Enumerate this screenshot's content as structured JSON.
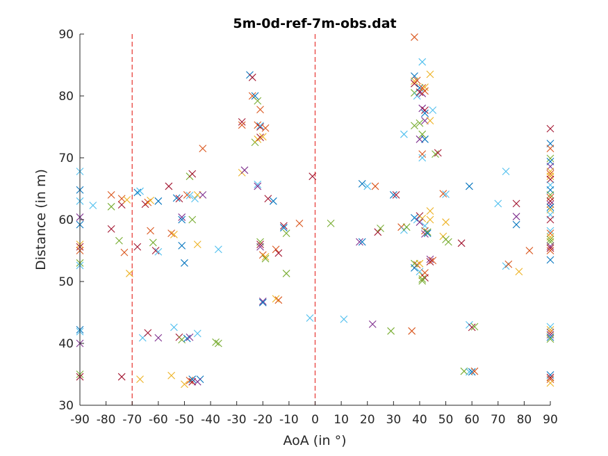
{
  "chart_data": {
    "type": "scatter",
    "title": "5m-0d-ref-7m-obs.dat",
    "xlabel": "AoA (in °)",
    "ylabel": "Distance (in m)",
    "xlim": [
      -90,
      90
    ],
    "ylim": [
      30,
      90
    ],
    "xticks": [
      -90,
      -80,
      -70,
      -60,
      -50,
      -40,
      -30,
      -20,
      -10,
      0,
      10,
      20,
      30,
      40,
      50,
      60,
      70,
      80,
      90
    ],
    "yticks": [
      30,
      40,
      50,
      60,
      70,
      80,
      90
    ],
    "grid": false,
    "marker": "x",
    "reference_lines_x": [
      -70,
      0
    ],
    "reference_line_color": "#e8413c",
    "palette": [
      "#0072bd",
      "#d95319",
      "#edb120",
      "#7e2f8e",
      "#77ac30",
      "#4dbeee",
      "#a2142f"
    ],
    "points": [
      [
        -90,
        67.8,
        5
      ],
      [
        -90,
        64.8,
        0
      ],
      [
        -90,
        63.0,
        5
      ],
      [
        -90,
        60.4,
        3
      ],
      [
        -90,
        59.2,
        0
      ],
      [
        -90,
        56.0,
        2
      ],
      [
        -90,
        55.6,
        6
      ],
      [
        -90,
        55.0,
        1
      ],
      [
        -90,
        53.0,
        4
      ],
      [
        -90,
        52.6,
        5
      ],
      [
        -90,
        42.2,
        0
      ],
      [
        -90,
        41.9,
        5
      ],
      [
        -90,
        40.0,
        3
      ],
      [
        -90,
        35.0,
        4
      ],
      [
        -90,
        34.6,
        6
      ],
      [
        -85,
        62.3,
        5
      ],
      [
        -78,
        64.0,
        1
      ],
      [
        -78,
        62.1,
        4
      ],
      [
        -78,
        58.5,
        6
      ],
      [
        -75,
        56.6,
        4
      ],
      [
        -74,
        63.4,
        1
      ],
      [
        -74,
        62.4,
        6
      ],
      [
        -73,
        54.7,
        1
      ],
      [
        -72,
        63.2,
        2
      ],
      [
        -71,
        51.3,
        2
      ],
      [
        -74,
        34.6,
        6
      ],
      [
        -68,
        64.4,
        0
      ],
      [
        -67,
        64.6,
        5
      ],
      [
        -68,
        55.6,
        6
      ],
      [
        -67,
        34.2,
        2
      ],
      [
        -66,
        40.9,
        5
      ],
      [
        -65,
        62.5,
        6
      ],
      [
        -64,
        62.8,
        1
      ],
      [
        -63,
        58.2,
        1
      ],
      [
        -63,
        63.1,
        2
      ],
      [
        -62,
        56.3,
        4
      ],
      [
        -61,
        55.0,
        6
      ],
      [
        -60,
        54.8,
        5
      ],
      [
        -60,
        63.0,
        0
      ],
      [
        -64,
        41.7,
        6
      ],
      [
        -60,
        40.9,
        3
      ],
      [
        -56,
        65.4,
        6
      ],
      [
        -55,
        57.8,
        1
      ],
      [
        -54,
        57.6,
        2
      ],
      [
        -53,
        63.5,
        0
      ],
      [
        -52,
        63.4,
        6
      ],
      [
        -51,
        60.4,
        3
      ],
      [
        -51,
        60.0,
        0
      ],
      [
        -51,
        55.8,
        0
      ],
      [
        -50,
        53.0,
        0
      ],
      [
        -49,
        64.0,
        1
      ],
      [
        -48,
        63.9,
        5
      ],
      [
        -48,
        67.0,
        4
      ],
      [
        -47,
        67.4,
        6
      ],
      [
        -47,
        60.0,
        4
      ],
      [
        -46,
        63.4,
        5
      ],
      [
        -45,
        64.0,
        2
      ],
      [
        -45,
        56.0,
        2
      ],
      [
        -43,
        71.5,
        1
      ],
      [
        -43,
        64.0,
        3
      ],
      [
        -55,
        34.8,
        2
      ],
      [
        -54,
        42.6,
        5
      ],
      [
        -52,
        41.0,
        6
      ],
      [
        -51,
        40.6,
        4
      ],
      [
        -50,
        33.4,
        2
      ],
      [
        -49,
        40.8,
        0
      ],
      [
        -48,
        41.0,
        3
      ],
      [
        -48,
        34.0,
        1
      ],
      [
        -47,
        33.8,
        6
      ],
      [
        -47,
        34.2,
        0
      ],
      [
        -45,
        41.6,
        5
      ],
      [
        -44,
        34.2,
        0
      ],
      [
        -45,
        33.8,
        3
      ],
      [
        -38,
        40.2,
        4
      ],
      [
        -37,
        40.0,
        4
      ],
      [
        -37,
        55.2,
        5
      ],
      [
        -28,
        75.8,
        6
      ],
      [
        -28,
        75.3,
        1
      ],
      [
        -28,
        67.6,
        2
      ],
      [
        -27,
        68.0,
        3
      ],
      [
        -25,
        83.4,
        0
      ],
      [
        -24,
        83.0,
        6
      ],
      [
        -24,
        80.0,
        1
      ],
      [
        -23,
        80.0,
        0
      ],
      [
        -22,
        79.2,
        4
      ],
      [
        -22,
        75.3,
        1
      ],
      [
        -21,
        75.0,
        6
      ],
      [
        -21,
        77.8,
        1
      ],
      [
        -21,
        75.2,
        5
      ],
      [
        -23,
        72.5,
        4
      ],
      [
        -22,
        73.0,
        2
      ],
      [
        -21,
        73.3,
        6
      ],
      [
        -20,
        73.4,
        2
      ],
      [
        -19,
        74.8,
        1
      ],
      [
        -22,
        65.7,
        5
      ],
      [
        -22,
        65.4,
        3
      ],
      [
        -21,
        56.4,
        4
      ],
      [
        -21,
        56.0,
        6
      ],
      [
        -21,
        55.6,
        3
      ],
      [
        -20,
        54.3,
        1
      ],
      [
        -19,
        54.0,
        2
      ],
      [
        -19,
        53.7,
        4
      ],
      [
        -18,
        63.4,
        6
      ],
      [
        -16,
        63.0,
        0
      ],
      [
        -20,
        46.8,
        3
      ],
      [
        -20,
        46.6,
        0
      ],
      [
        -15,
        55.2,
        1
      ],
      [
        -14,
        54.6,
        6
      ],
      [
        -15,
        47.2,
        2
      ],
      [
        -14,
        47.0,
        1
      ],
      [
        -12,
        59.0,
        6
      ],
      [
        -12,
        58.7,
        0
      ],
      [
        -11,
        57.8,
        4
      ],
      [
        -11,
        51.3,
        4
      ],
      [
        -6,
        59.4,
        1
      ],
      [
        -2,
        44.1,
        5
      ],
      [
        -1,
        67.0,
        6
      ],
      [
        6,
        59.4,
        4
      ],
      [
        11,
        43.9,
        5
      ],
      [
        17,
        56.4,
        3
      ],
      [
        18,
        56.4,
        0
      ],
      [
        18,
        65.8,
        0
      ],
      [
        20,
        65.4,
        5
      ],
      [
        22,
        43.1,
        3
      ],
      [
        23,
        65.4,
        1
      ],
      [
        24,
        58.0,
        6
      ],
      [
        25,
        58.6,
        4
      ],
      [
        29,
        42.0,
        4
      ],
      [
        30,
        64.0,
        0
      ],
      [
        31,
        64.0,
        6
      ],
      [
        33,
        58.8,
        1
      ],
      [
        34,
        73.8,
        5
      ],
      [
        34,
        58.3,
        5
      ],
      [
        35,
        58.8,
        4
      ],
      [
        37,
        42.0,
        1
      ],
      [
        38,
        89.5,
        1
      ],
      [
        38,
        83.2,
        0
      ],
      [
        38,
        82.4,
        2
      ],
      [
        38,
        82.0,
        6
      ],
      [
        38,
        80.5,
        4
      ],
      [
        39,
        82.5,
        1
      ],
      [
        39,
        80.0,
        5
      ],
      [
        40,
        81.3,
        0
      ],
      [
        40,
        80.6,
        6
      ],
      [
        41,
        81.3,
        1
      ],
      [
        41,
        80.4,
        3
      ],
      [
        42,
        81.4,
        2
      ],
      [
        42,
        80.8,
        1
      ],
      [
        41,
        85.5,
        5
      ],
      [
        41,
        78.0,
        3
      ],
      [
        42,
        77.7,
        6
      ],
      [
        42,
        76.0,
        3
      ],
      [
        42,
        77.2,
        0
      ],
      [
        38,
        75.2,
        4
      ],
      [
        40,
        73.0,
        3
      ],
      [
        40,
        75.6,
        4
      ],
      [
        41,
        73.8,
        4
      ],
      [
        42,
        73.0,
        0
      ],
      [
        44,
        83.5,
        2
      ],
      [
        45,
        77.7,
        5
      ],
      [
        44,
        76.0,
        2
      ],
      [
        41,
        70.6,
        1
      ],
      [
        41,
        70.0,
        5
      ],
      [
        46,
        70.6,
        4
      ],
      [
        47,
        70.8,
        6
      ],
      [
        38,
        60.3,
        0
      ],
      [
        39,
        60.0,
        5
      ],
      [
        40,
        60.6,
        6
      ],
      [
        41,
        60.2,
        2
      ],
      [
        40,
        59.6,
        3
      ],
      [
        42,
        59.0,
        5
      ],
      [
        42,
        58.2,
        1
      ],
      [
        42,
        57.7,
        3
      ],
      [
        43,
        58.0,
        4
      ],
      [
        44,
        60.0,
        2
      ],
      [
        44,
        61.4,
        2
      ],
      [
        43,
        57.8,
        0
      ],
      [
        38,
        52.9,
        4
      ],
      [
        39,
        52.7,
        1
      ],
      [
        38,
        52.2,
        0
      ],
      [
        40,
        52.9,
        2
      ],
      [
        40,
        51.6,
        5
      ],
      [
        41,
        51.0,
        2
      ],
      [
        42,
        51.4,
        1
      ],
      [
        42,
        50.6,
        6
      ],
      [
        41,
        50.4,
        4
      ],
      [
        41,
        50.1,
        4
      ],
      [
        44,
        53.6,
        3
      ],
      [
        44,
        53.2,
        6
      ],
      [
        45,
        53.4,
        1
      ],
      [
        49,
        64.2,
        1
      ],
      [
        50,
        64.1,
        5
      ],
      [
        49,
        57.3,
        2
      ],
      [
        50,
        59.6,
        2
      ],
      [
        50,
        56.8,
        4
      ],
      [
        51,
        56.4,
        4
      ],
      [
        56,
        56.2,
        6
      ],
      [
        57,
        35.5,
        4
      ],
      [
        59,
        35.4,
        5
      ],
      [
        60,
        35.4,
        0
      ],
      [
        61,
        35.5,
        1
      ],
      [
        59,
        65.4,
        0
      ],
      [
        59,
        43.0,
        5
      ],
      [
        60,
        42.6,
        6
      ],
      [
        61,
        42.7,
        4
      ],
      [
        70,
        62.6,
        5
      ],
      [
        73,
        67.8,
        5
      ],
      [
        73,
        52.5,
        5
      ],
      [
        74,
        52.8,
        1
      ],
      [
        77,
        62.6,
        6
      ],
      [
        77,
        60.5,
        3
      ],
      [
        77,
        59.2,
        0
      ],
      [
        78,
        51.6,
        2
      ],
      [
        82,
        55.0,
        1
      ],
      [
        90,
        74.7,
        6
      ],
      [
        90,
        72.3,
        0
      ],
      [
        90,
        71.5,
        1
      ],
      [
        90,
        69.9,
        4
      ],
      [
        90,
        69.4,
        0
      ],
      [
        90,
        68.6,
        3
      ],
      [
        90,
        67.8,
        2
      ],
      [
        90,
        67.4,
        1
      ],
      [
        90,
        67.0,
        2
      ],
      [
        90,
        66.5,
        6
      ],
      [
        90,
        65.6,
        5
      ],
      [
        90,
        64.8,
        0
      ],
      [
        90,
        64.0,
        4
      ],
      [
        90,
        63.6,
        1
      ],
      [
        90,
        63.0,
        6
      ],
      [
        90,
        62.5,
        3
      ],
      [
        90,
        62.0,
        0
      ],
      [
        90,
        61.6,
        2
      ],
      [
        90,
        60.8,
        5
      ],
      [
        90,
        60.0,
        6
      ],
      [
        90,
        58.2,
        5
      ],
      [
        90,
        57.8,
        1
      ],
      [
        90,
        57.2,
        2
      ],
      [
        90,
        56.8,
        4
      ],
      [
        90,
        56.4,
        4
      ],
      [
        90,
        55.7,
        3
      ],
      [
        90,
        55.4,
        6
      ],
      [
        90,
        55.0,
        1
      ],
      [
        90,
        53.5,
        0
      ],
      [
        90,
        42.7,
        5
      ],
      [
        90,
        42.2,
        2
      ],
      [
        90,
        41.8,
        1
      ],
      [
        90,
        41.4,
        3
      ],
      [
        90,
        41.0,
        0
      ],
      [
        90,
        40.7,
        4
      ],
      [
        90,
        34.9,
        0
      ],
      [
        90,
        34.5,
        6
      ],
      [
        90,
        34.2,
        1
      ],
      [
        90,
        33.6,
        2
      ]
    ]
  }
}
